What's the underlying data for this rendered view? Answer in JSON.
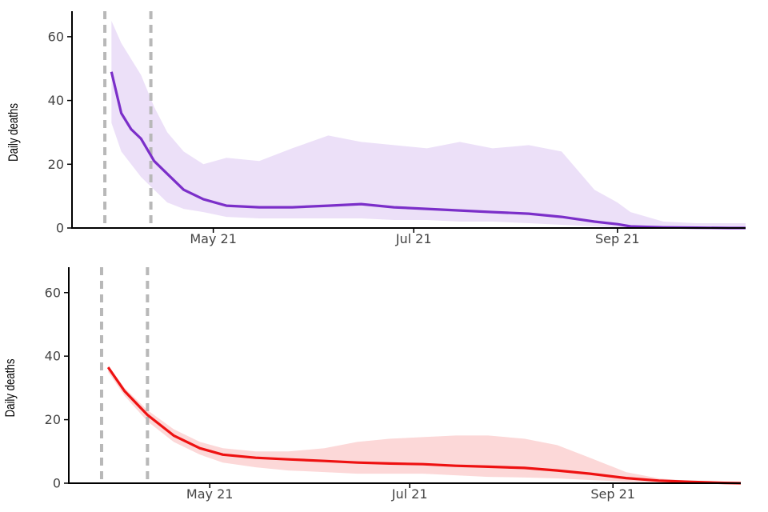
{
  "colors": {
    "panel1_line": "#7b2fc9",
    "panel1_band": "#ece0f8",
    "panel2_line": "#ee1111",
    "panel2_band": "#fcd8d8",
    "vline": "#b8b8b8",
    "axis": "#000000"
  },
  "chart_data": [
    {
      "type": "line",
      "ylabel": "Daily deaths",
      "ylim": [
        0,
        68
      ],
      "yticks": [
        "0",
        "20",
        "40",
        "60"
      ],
      "xlim": [
        "2021-03-19",
        "2021-10-10"
      ],
      "xticks": [
        {
          "date": "2021-05-01",
          "label": "May 21"
        },
        {
          "date": "2021-07-01",
          "label": "Jul 21"
        },
        {
          "date": "2021-09-01",
          "label": "Sep 21"
        }
      ],
      "vlines": [
        "2021-03-29",
        "2021-04-12"
      ],
      "series": [
        {
          "x": [
            "2021-03-31",
            "2021-04-03",
            "2021-04-06",
            "2021-04-09",
            "2021-04-13",
            "2021-04-17",
            "2021-04-22",
            "2021-04-28",
            "2021-05-05",
            "2021-05-15",
            "2021-05-25",
            "2021-06-05",
            "2021-06-15",
            "2021-06-25",
            "2021-07-05",
            "2021-07-15",
            "2021-07-25",
            "2021-08-05",
            "2021-08-15",
            "2021-08-25",
            "2021-09-01",
            "2021-09-05",
            "2021-09-15",
            "2021-09-25",
            "2021-10-05",
            "2021-10-10"
          ],
          "values": [
            49,
            36,
            31,
            28,
            21,
            17,
            12,
            9,
            7,
            6.5,
            6.5,
            7,
            7.5,
            6.5,
            6,
            5.5,
            5,
            4.5,
            3.5,
            2,
            1.2,
            0.5,
            0.2,
            0.1,
            0,
            0
          ],
          "band_lower": [
            33,
            24,
            20,
            16,
            12,
            8,
            6,
            5,
            3.5,
            3,
            3,
            3,
            3,
            2.5,
            2.5,
            2,
            2,
            1.5,
            1,
            0.5,
            0.2,
            0,
            0,
            0,
            0,
            0
          ],
          "band_upper": [
            65,
            58,
            53,
            48,
            38,
            30,
            24,
            20,
            22,
            21,
            25,
            29,
            27,
            26,
            25,
            27,
            25,
            26,
            24,
            12,
            8,
            5,
            2,
            1.5,
            1.5,
            1.5
          ]
        }
      ]
    },
    {
      "type": "line",
      "ylabel": "Daily deaths",
      "ylim": [
        0,
        68
      ],
      "yticks": [
        "0",
        "20",
        "40",
        "60"
      ],
      "xlim": [
        "2021-03-19",
        "2021-10-10"
      ],
      "xticks": [
        {
          "date": "2021-05-01",
          "label": "May 21"
        },
        {
          "date": "2021-07-01",
          "label": "Jul 21"
        },
        {
          "date": "2021-09-01",
          "label": "Sep 21"
        }
      ],
      "vlines": [
        "2021-03-29",
        "2021-04-12"
      ],
      "series": [
        {
          "x": [
            "2021-03-31",
            "2021-04-05",
            "2021-04-12",
            "2021-04-20",
            "2021-04-28",
            "2021-05-05",
            "2021-05-15",
            "2021-05-25",
            "2021-06-05",
            "2021-06-15",
            "2021-06-25",
            "2021-07-05",
            "2021-07-15",
            "2021-07-25",
            "2021-08-05",
            "2021-08-15",
            "2021-08-25",
            "2021-09-05",
            "2021-09-15",
            "2021-09-25",
            "2021-10-05",
            "2021-10-10"
          ],
          "values": [
            36.5,
            29,
            21.5,
            15,
            11,
            9,
            8,
            7.5,
            7,
            6.5,
            6.2,
            6,
            5.5,
            5.2,
            4.8,
            4,
            3,
            1.6,
            0.8,
            0.4,
            0.1,
            0
          ],
          "band_lower": [
            35,
            27.5,
            19.5,
            13,
            9,
            6.5,
            5,
            4,
            3.5,
            3,
            3,
            3,
            2.5,
            2,
            1.8,
            1.5,
            1,
            0.5,
            0.2,
            0.1,
            0,
            0
          ],
          "band_upper": [
            37,
            30,
            23,
            17,
            13,
            11,
            10,
            10,
            11,
            13,
            14,
            14.5,
            15,
            15,
            14,
            12,
            8,
            3.5,
            1.5,
            0.7,
            0.3,
            0.2
          ]
        }
      ]
    }
  ]
}
